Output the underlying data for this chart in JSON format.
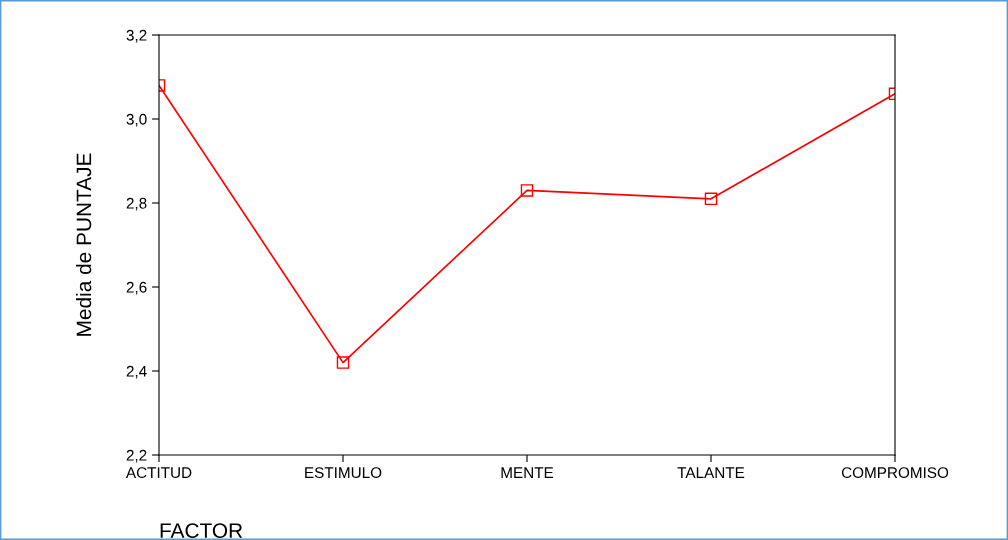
{
  "chart_data": {
    "type": "line",
    "xlabel": "FACTOR",
    "ylabel": "Media de PUNTAJE",
    "categories": [
      "ACTITUD",
      "ESTIMULO",
      "MENTE",
      "TALANTE",
      "COMPROMISO"
    ],
    "series": [
      {
        "color": "#ff0000",
        "values": [
          3.08,
          2.42,
          2.83,
          2.81,
          3.06
        ]
      }
    ],
    "ylim": [
      2.2,
      3.2
    ],
    "yticks": [
      {
        "value": 2.2,
        "label": "2,2"
      },
      {
        "value": 2.4,
        "label": "2,4"
      },
      {
        "value": 2.6,
        "label": "2,6"
      },
      {
        "value": 2.8,
        "label": "2,8"
      },
      {
        "value": 3.0,
        "label": "3,0"
      },
      {
        "value": 3.2,
        "label": "3,2"
      }
    ],
    "grid": false,
    "legend": false,
    "marker": "square",
    "line_style": "solid"
  }
}
